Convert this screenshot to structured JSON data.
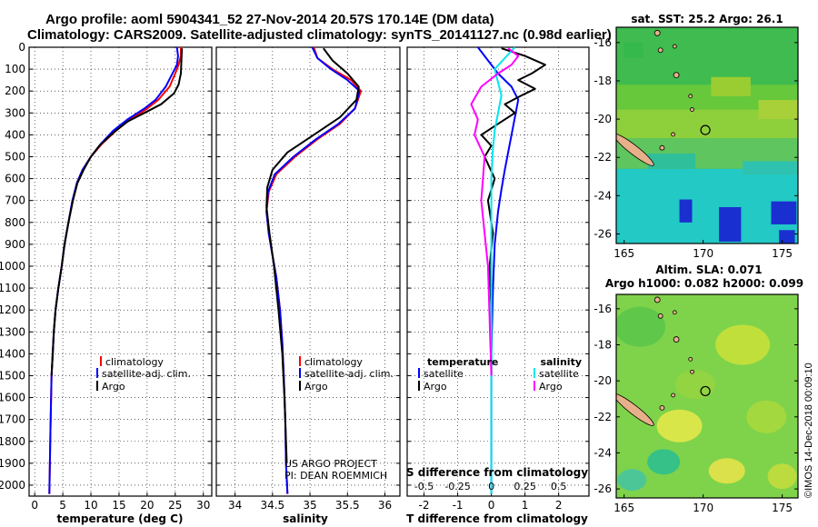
{
  "title": {
    "line1": "Argo profile: aoml 5904341_52 27-Nov-2014 20.57S 170.14E (DM data)",
    "line2": "Climatology: CARS2009. Satellite-adjusted climatology: synTS_20141127.nc (0.98d earlier)"
  },
  "colors": {
    "climatology": "#ff0000",
    "satellite": "#0000ff",
    "argo": "#000000",
    "sal_satellite": "#00e5ee",
    "sal_argo": "#ff00ff"
  },
  "credit": {
    "project": "US ARGO PROJECT",
    "pi": "PI: DEAN ROEMMICH"
  },
  "footer_stamp": "©IMOS 14-Dec-2018 00:09:10",
  "chart_data": [
    {
      "id": "temperature",
      "type": "line",
      "xlabel": "temperature (deg C)",
      "ylabel": "",
      "xlim": [
        -1,
        31.5
      ],
      "ylim": [
        2050,
        0
      ],
      "xticks": [
        0,
        5,
        10,
        15,
        20,
        25,
        30
      ],
      "yticks": [
        0,
        100,
        200,
        300,
        400,
        500,
        600,
        700,
        800,
        900,
        1000,
        1100,
        1200,
        1300,
        1400,
        1500,
        1600,
        1700,
        1800,
        1900,
        2000
      ],
      "ytick_labels": [
        "0",
        "100",
        "200",
        "300",
        "400",
        "500",
        "600",
        "700",
        "800",
        "900",
        "1000",
        "1100",
        "1200",
        "1300",
        "1400",
        "1500",
        "1600",
        "1700",
        "1800",
        "1900",
        "2000"
      ],
      "legend": [
        "climatology",
        "satellite-adj. clim.",
        "Argo"
      ],
      "series": [
        {
          "name": "climatology",
          "color": "#ff0000",
          "x": [
            26,
            26,
            25.6,
            25,
            24,
            22,
            20,
            17,
            14.5,
            12,
            10,
            8.5,
            7.5,
            6.8,
            6,
            5.3,
            4.8,
            4.2,
            3.7,
            3.4,
            3.2,
            3,
            2.8,
            2.6
          ],
          "y": [
            0,
            40,
            80,
            120,
            180,
            240,
            280,
            330,
            380,
            440,
            500,
            560,
            620,
            700,
            800,
            900,
            1000,
            1100,
            1200,
            1300,
            1400,
            1500,
            1750,
            2040
          ]
        },
        {
          "name": "satellite-adj. clim.",
          "color": "#0000ff",
          "x": [
            25.3,
            25.5,
            25.3,
            24.5,
            23.3,
            21.5,
            19.5,
            16.5,
            14,
            11.8,
            10,
            8.5,
            7.5,
            6.7,
            6,
            5.3,
            4.8,
            4.2,
            3.7,
            3.4,
            3.2,
            3,
            2.8,
            2.6
          ],
          "y": [
            0,
            40,
            80,
            120,
            180,
            240,
            280,
            330,
            380,
            440,
            500,
            560,
            620,
            700,
            800,
            900,
            1000,
            1100,
            1200,
            1300,
            1400,
            1500,
            1750,
            2040
          ]
        },
        {
          "name": "Argo",
          "color": "#000000",
          "x": [
            26.2,
            26.1,
            26,
            25.6,
            24.8,
            22.5,
            19.5,
            16.5,
            14,
            11.5,
            10,
            8.7,
            7.6,
            6.8,
            6,
            5.3,
            4.8,
            4.2,
            3.7,
            3.4,
            3.2,
            3
          ],
          "y": [
            5,
            60,
            120,
            170,
            210,
            260,
            300,
            340,
            390,
            450,
            500,
            560,
            620,
            700,
            800,
            900,
            1000,
            1100,
            1200,
            1300,
            1400,
            1500
          ]
        }
      ]
    },
    {
      "id": "salinity",
      "type": "line",
      "xlabel": "salinity",
      "ylabel": "",
      "xlim": [
        33.75,
        36.2
      ],
      "ylim": [
        2050,
        0
      ],
      "xticks": [
        34,
        34.5,
        35,
        35.5,
        36
      ],
      "xtick_labels": [
        "34",
        "34.5",
        "35",
        "35.5",
        "36"
      ],
      "legend": [
        "climatology",
        "satellite-adj. clim.",
        "Argo"
      ],
      "series": [
        {
          "name": "climatology",
          "color": "#ff0000",
          "x": [
            35.05,
            35.1,
            35.3,
            35.55,
            35.68,
            35.6,
            35.4,
            35.1,
            34.8,
            34.55,
            34.45,
            34.42,
            34.45,
            34.5,
            34.55,
            34.6,
            34.63,
            34.65,
            34.67,
            34.68,
            34.7
          ],
          "y": [
            0,
            50,
            100,
            150,
            200,
            280,
            350,
            420,
            500,
            580,
            660,
            750,
            850,
            950,
            1050,
            1200,
            1350,
            1500,
            1700,
            1900,
            2040
          ]
        },
        {
          "name": "satellite-adj. clim.",
          "color": "#0000ff",
          "x": [
            35.03,
            35.1,
            35.28,
            35.5,
            35.66,
            35.6,
            35.38,
            35.08,
            34.78,
            34.53,
            34.44,
            34.42,
            34.45,
            34.5,
            34.55,
            34.6,
            34.63,
            34.65,
            34.67,
            34.68,
            34.7
          ],
          "y": [
            0,
            50,
            100,
            150,
            200,
            280,
            350,
            420,
            500,
            580,
            660,
            750,
            850,
            950,
            1050,
            1200,
            1350,
            1500,
            1700,
            1900,
            2040
          ]
        },
        {
          "name": "Argo",
          "color": "#000000",
          "x": [
            35.18,
            35.3,
            35.5,
            35.65,
            35.62,
            35.4,
            35.05,
            34.7,
            34.5,
            34.43,
            34.42,
            34.46,
            34.52,
            34.58,
            34.63,
            34.66,
            34.69
          ],
          "y": [
            5,
            60,
            120,
            180,
            240,
            320,
            400,
            480,
            560,
            640,
            730,
            850,
            1000,
            1200,
            1400,
            1600,
            1900
          ]
        }
      ]
    },
    {
      "id": "difference",
      "type": "line",
      "xlabel": "T difference from climatology",
      "second_xlabel": "S difference from climatology",
      "xlim": [
        -2.5,
        2.9
      ],
      "ylim": [
        2050,
        0
      ],
      "xticks": [
        -2,
        -1,
        0,
        1,
        2
      ],
      "second_xticks": [
        -0.5,
        -0.25,
        0,
        0.25,
        0.5
      ],
      "second_xtick_labels": [
        "-0.5",
        "-0.25",
        "0",
        "0.25",
        "0.5"
      ],
      "second_xtick_positions_T": [
        -2,
        -1,
        0,
        1,
        2
      ],
      "legend_temperature": {
        "heading": "temperature",
        "entries": [
          "satellite",
          "Argo"
        ]
      },
      "legend_salinity": {
        "heading": "salinity",
        "entries": [
          "satellite",
          "Argo"
        ]
      },
      "series": [
        {
          "name": "temperature satellite",
          "color": "#0000ff",
          "x": [
            -0.4,
            -0.1,
            0.2,
            0.6,
            0.8,
            0.7,
            0.6,
            0.5,
            0.4,
            0.3,
            0.2,
            0.1,
            0.05,
            0,
            0,
            0
          ],
          "y": [
            0,
            60,
            120,
            180,
            240,
            320,
            400,
            480,
            560,
            650,
            750,
            900,
            1100,
            1400,
            1700,
            2040
          ]
        },
        {
          "name": "temperature Argo",
          "color": "#000000",
          "x": [
            0.3,
            1,
            1.6,
            1.2,
            0.8,
            1.3,
            0.9,
            0.4,
            0.7,
            0.2,
            -0.3,
            0,
            -0.2,
            0.1,
            -0.1,
            0.05,
            -0.05,
            0,
            0
          ],
          "y": [
            5,
            40,
            80,
            120,
            150,
            190,
            220,
            260,
            300,
            350,
            400,
            450,
            500,
            600,
            700,
            850,
            1000,
            1200,
            1500
          ]
        },
        {
          "name": "salinity satellite",
          "color": "#00e5ee",
          "x": [
            0.7,
            0.4,
            0.1,
            0.2,
            0.3,
            0.2,
            0.1,
            0.05,
            0,
            0,
            0,
            0
          ],
          "y": [
            0,
            50,
            100,
            160,
            220,
            300,
            380,
            460,
            600,
            800,
            1200,
            2040
          ]
        },
        {
          "name": "salinity Argo",
          "color": "#ff00ff",
          "x": [
            0.5,
            0.8,
            0.6,
            0.2,
            -0.3,
            -0.6,
            -0.4,
            -0.5,
            -0.2,
            -0.3,
            -0.1,
            0
          ],
          "y": [
            5,
            40,
            80,
            120,
            180,
            260,
            330,
            400,
            500,
            700,
            1000,
            1500
          ]
        }
      ]
    }
  ],
  "maps": [
    {
      "id": "sst-map",
      "title": "sat. SST: 25.2 Argo: 26.1",
      "xticks": [
        "165",
        "170",
        "175"
      ],
      "yticks": [
        "-16",
        "-18",
        "-20",
        "-22",
        "-24",
        "-26"
      ],
      "lon_range": [
        164.5,
        176
      ],
      "lat_range": [
        -26.5,
        -15.2
      ],
      "float_position": [
        170.14,
        -20.57
      ]
    },
    {
      "id": "sla-map",
      "title": "Altim. SLA: 0.071",
      "subtitle": "Argo h1000: 0.082 h2000: 0.099",
      "xticks": [
        "165",
        "170",
        "175"
      ],
      "yticks": [
        "-16",
        "-18",
        "-20",
        "-22",
        "-24",
        "-26"
      ],
      "lon_range": [
        164.5,
        176
      ],
      "lat_range": [
        -26.5,
        -15.2
      ],
      "float_position": [
        170.14,
        -20.57
      ]
    }
  ]
}
